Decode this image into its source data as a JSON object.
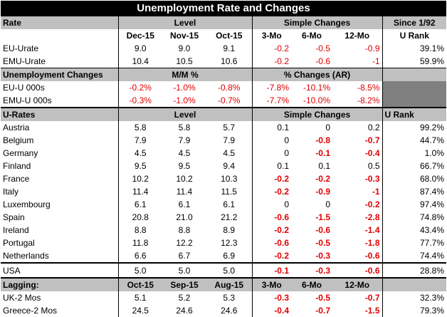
{
  "title": "Unemployment Rate and Changes",
  "top": {
    "rate_label": "Rate",
    "level_label": "Level",
    "simple_label": "Simple Changes",
    "since_label": "Since 1/92",
    "cols": [
      "Dec-15",
      "Nov-15",
      "Oct-15",
      "3-Mo",
      "6-Mo",
      "12-Mo",
      "U Rank"
    ],
    "rows": [
      {
        "name": "EU-Urate",
        "v": [
          "9.0",
          "9.0",
          "9.1",
          "-0.2",
          "-0.5",
          "-0.9",
          "39.1%"
        ]
      },
      {
        "name": "EMU-Urate",
        "v": [
          "10.4",
          "10.5",
          "10.6",
          "-0.2",
          "-0.6",
          "-1",
          "59.9%"
        ]
      }
    ]
  },
  "changes": {
    "label": "Unemployment Changes",
    "mm_label": "M/M %",
    "pct_label": "% Changes (AR)",
    "rows": [
      {
        "name": "EU-U 000s",
        "v": [
          "-0.2%",
          "-1.0%",
          "-0.8%",
          "-7.8%",
          "-10.1%",
          "-8.5%"
        ]
      },
      {
        "name": "EMU-U 000s",
        "v": [
          "-0.3%",
          "-1.0%",
          "-0.7%",
          "-7.7%",
          "-10.0%",
          "-8.2%"
        ]
      }
    ]
  },
  "urates": {
    "label": "U-Rates",
    "level_label": "Level",
    "simple_label": "Simple Changes",
    "rank_label": "U Rank",
    "rows": [
      {
        "name": "Austria",
        "v": [
          "5.8",
          "5.8",
          "5.7",
          "0.1",
          "0",
          "0.2",
          "99.2%"
        ]
      },
      {
        "name": "Belgium",
        "v": [
          "7.9",
          "7.9",
          "7.9",
          "0",
          "-0.8",
          "-0.7",
          "44.7%"
        ]
      },
      {
        "name": "Germany",
        "v": [
          "4.5",
          "4.5",
          "4.5",
          "0",
          "-0.1",
          "-0.4",
          "1.0%"
        ]
      },
      {
        "name": "Finland",
        "v": [
          "9.5",
          "9.5",
          "9.4",
          "0.1",
          "0.1",
          "0.5",
          "66.7%"
        ]
      },
      {
        "name": "France",
        "v": [
          "10.2",
          "10.2",
          "10.3",
          "-0.2",
          "-0.2",
          "-0.3",
          "68.0%"
        ]
      },
      {
        "name": "Italy",
        "v": [
          "11.4",
          "11.4",
          "11.5",
          "-0.2",
          "-0.9",
          "-1",
          "87.4%"
        ]
      },
      {
        "name": "Luxembourg",
        "v": [
          "6.1",
          "6.1",
          "6.1",
          "0",
          "0",
          "-0.2",
          "97.4%"
        ]
      },
      {
        "name": "Spain",
        "v": [
          "20.8",
          "21.0",
          "21.2",
          "-0.6",
          "-1.5",
          "-2.8",
          "74.8%"
        ]
      },
      {
        "name": "Ireland",
        "v": [
          "8.8",
          "8.8",
          "8.9",
          "-0.2",
          "-0.6",
          "-1.4",
          "43.4%"
        ]
      },
      {
        "name": "Portugal",
        "v": [
          "11.8",
          "12.2",
          "12.3",
          "-0.6",
          "-0.5",
          "-1.8",
          "77.7%"
        ]
      },
      {
        "name": "Netherlands",
        "v": [
          "6.6",
          "6.7",
          "6.9",
          "-0.2",
          "-0.3",
          "-0.6",
          "74.4%"
        ]
      }
    ]
  },
  "usa": {
    "name": "USA",
    "v": [
      "5.0",
      "5.0",
      "5.0",
      "-0.1",
      "-0.3",
      "-0.6",
      "28.8%"
    ]
  },
  "lagging": {
    "label": "Lagging:",
    "cols": [
      "Oct-15",
      "Sep-15",
      "Aug-15",
      "3-Mo",
      "6-Mo",
      "12-Mo"
    ],
    "rows": [
      {
        "name": "UK-2 Mos",
        "v": [
          "5.1",
          "5.2",
          "5.3",
          "-0.3",
          "-0.5",
          "-0.7",
          "32.3%"
        ]
      },
      {
        "name": "Greece-2 Mos",
        "v": [
          "24.5",
          "24.6",
          "24.6",
          "-0.4",
          "-0.7",
          "-1.5",
          "79.3%"
        ]
      }
    ]
  },
  "colors": {
    "negative": "#e00000",
    "header_bg": "#c0c0c0",
    "title_bg": "#000000",
    "filler": "#808080"
  }
}
